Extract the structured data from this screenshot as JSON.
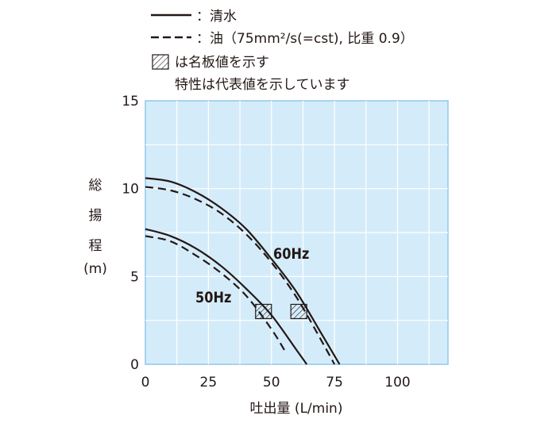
{
  "chart_data": {
    "type": "line",
    "legend": {
      "clean_water_label": "：清水",
      "oil_label": "：油（75mm²/s(=cst), 比重 0.9）",
      "hatch_label": "は名板値を示す",
      "note": "特性は代表値を示しています",
      "placement": "top-left"
    },
    "ylabel_chars": [
      "総",
      "揚",
      "程",
      "(m)"
    ],
    "xlabel": "吐出量 (L/min)",
    "xlim": [
      0,
      120
    ],
    "ylim": [
      0,
      15
    ],
    "x_ticks": [
      0,
      25,
      50,
      75,
      100
    ],
    "y_ticks": [
      0,
      5,
      10,
      15
    ],
    "grid": true,
    "series_labels": {
      "hz60": "60Hz",
      "hz50": "50Hz"
    },
    "series": [
      {
        "frequency": "60Hz",
        "fluid": "clean water",
        "style": "solid",
        "x": [
          0,
          10,
          20,
          30,
          40,
          50,
          60,
          70,
          77
        ],
        "y": [
          10.6,
          10.4,
          9.8,
          8.9,
          7.7,
          6.0,
          4.1,
          1.7,
          0
        ]
      },
      {
        "frequency": "60Hz",
        "fluid": "oil",
        "style": "dashed",
        "x": [
          0,
          10,
          20,
          30,
          40,
          50,
          60,
          70,
          75
        ],
        "y": [
          10.1,
          9.9,
          9.4,
          8.6,
          7.4,
          5.8,
          3.8,
          1.3,
          0
        ]
      },
      {
        "frequency": "50Hz",
        "fluid": "clean water",
        "style": "solid",
        "x": [
          0,
          10,
          20,
          30,
          40,
          50,
          60,
          64
        ],
        "y": [
          7.7,
          7.3,
          6.6,
          5.6,
          4.3,
          2.8,
          0.8,
          0
        ]
      },
      {
        "frequency": "50Hz",
        "fluid": "oil",
        "style": "dashed",
        "x": [
          0,
          10,
          20,
          30,
          40,
          50,
          56
        ],
        "y": [
          7.3,
          7.0,
          6.2,
          5.2,
          3.9,
          2.0,
          0.6
        ]
      }
    ],
    "rated_points": [
      {
        "frequency": "50Hz",
        "x": 50,
        "y": 2.6
      },
      {
        "frequency": "60Hz",
        "x": 64,
        "y": 2.6
      }
    ],
    "colors": {
      "plot_background": "#d4ecfa",
      "line": "#231815",
      "grid": "#ffffff",
      "frame": "#8fc8ea"
    }
  }
}
